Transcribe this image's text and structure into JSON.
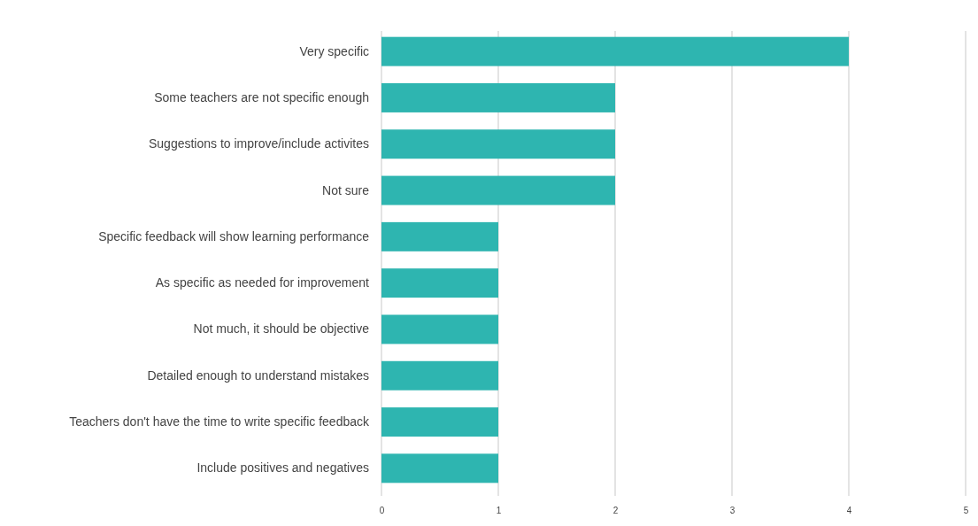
{
  "chart_data": {
    "type": "bar",
    "orientation": "horizontal",
    "categories": [
      "Very specific",
      "Some teachers are not specific enough",
      "Suggestions to improve/include activites",
      "Not sure",
      "Specific feedback will show learning performance",
      "As specific as needed for improvement",
      "Not much, it should be objective",
      "Detailed enough to understand mistakes",
      "Teachers don't have the time to write specific feedback",
      "Include positives and negatives"
    ],
    "values": [
      4,
      2,
      2,
      2,
      1,
      1,
      1,
      1,
      1,
      1
    ],
    "color": "#2eb5b0",
    "xlim": [
      0,
      5
    ],
    "xticks": [
      0,
      1,
      2,
      3,
      4,
      5
    ],
    "grid": "x"
  }
}
